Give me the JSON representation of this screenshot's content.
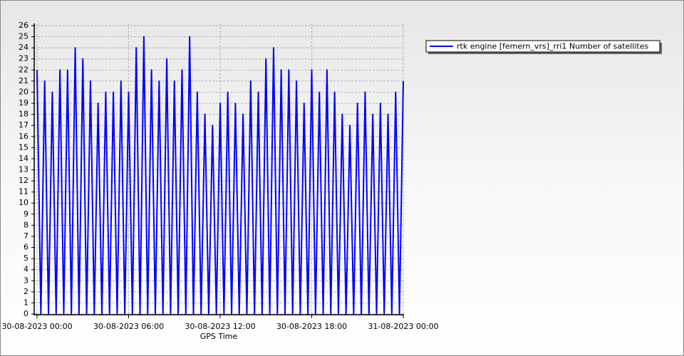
{
  "chart_data": {
    "type": "line",
    "x_label": "GPS Time",
    "x": [
      "30-08-2023 00:00",
      "30-08-2023 00:15",
      "30-08-2023 00:30",
      "30-08-2023 00:45",
      "30-08-2023 01:00",
      "30-08-2023 01:15",
      "30-08-2023 01:30",
      "30-08-2023 01:45",
      "30-08-2023 02:00",
      "30-08-2023 02:15",
      "30-08-2023 02:30",
      "30-08-2023 02:45",
      "30-08-2023 03:00",
      "30-08-2023 03:15",
      "30-08-2023 03:30",
      "30-08-2023 03:45",
      "30-08-2023 04:00",
      "30-08-2023 04:15",
      "30-08-2023 04:30",
      "30-08-2023 04:45",
      "30-08-2023 05:00",
      "30-08-2023 05:15",
      "30-08-2023 05:30",
      "30-08-2023 05:45",
      "30-08-2023 06:00",
      "30-08-2023 06:15",
      "30-08-2023 06:30",
      "30-08-2023 06:45",
      "30-08-2023 07:00",
      "30-08-2023 07:15",
      "30-08-2023 07:30",
      "30-08-2023 07:45",
      "30-08-2023 08:00",
      "30-08-2023 08:15",
      "30-08-2023 08:30",
      "30-08-2023 08:45",
      "30-08-2023 09:00",
      "30-08-2023 09:15",
      "30-08-2023 09:30",
      "30-08-2023 09:45",
      "30-08-2023 10:00",
      "30-08-2023 10:15",
      "30-08-2023 10:30",
      "30-08-2023 10:45",
      "30-08-2023 11:00",
      "30-08-2023 11:15",
      "30-08-2023 11:30",
      "30-08-2023 11:45",
      "30-08-2023 12:00",
      "30-08-2023 12:15",
      "30-08-2023 12:30",
      "30-08-2023 12:45",
      "30-08-2023 13:00",
      "30-08-2023 13:15",
      "30-08-2023 13:30",
      "30-08-2023 13:45",
      "30-08-2023 14:00",
      "30-08-2023 14:15",
      "30-08-2023 14:30",
      "30-08-2023 14:45",
      "30-08-2023 15:00",
      "30-08-2023 15:15",
      "30-08-2023 15:30",
      "30-08-2023 15:45",
      "30-08-2023 16:00",
      "30-08-2023 16:15",
      "30-08-2023 16:30",
      "30-08-2023 16:45",
      "30-08-2023 17:00",
      "30-08-2023 17:15",
      "30-08-2023 17:30",
      "30-08-2023 17:45",
      "30-08-2023 18:00",
      "30-08-2023 18:15",
      "30-08-2023 18:30",
      "30-08-2023 18:45",
      "30-08-2023 19:00",
      "30-08-2023 19:15",
      "30-08-2023 19:30",
      "30-08-2023 19:45",
      "30-08-2023 20:00",
      "30-08-2023 20:15",
      "30-08-2023 20:30",
      "30-08-2023 20:45",
      "30-08-2023 21:00",
      "30-08-2023 21:15",
      "30-08-2023 21:30",
      "30-08-2023 21:45",
      "30-08-2023 22:00",
      "30-08-2023 22:15",
      "30-08-2023 22:30",
      "30-08-2023 22:45",
      "30-08-2023 23:00",
      "30-08-2023 23:15",
      "30-08-2023 23:30",
      "30-08-2023 23:45",
      "31-08-2023 00:00"
    ],
    "series": [
      {
        "name": "rtk engine [femern_vrs]_rri1 Number of satellites",
        "color": "#0000ff",
        "values": [
          22,
          0,
          21,
          0,
          20,
          0,
          22,
          0,
          22,
          0,
          24,
          0,
          23,
          0,
          21,
          0,
          19,
          0,
          20,
          0,
          20,
          0,
          21,
          0,
          20,
          0,
          24,
          0,
          25,
          0,
          22,
          0,
          21,
          0,
          23,
          0,
          21,
          0,
          22,
          0,
          25,
          0,
          20,
          0,
          18,
          0,
          17,
          0,
          19,
          0,
          20,
          0,
          19,
          0,
          18,
          0,
          21,
          0,
          20,
          0,
          23,
          0,
          24,
          0,
          22,
          0,
          22,
          0,
          21,
          0,
          19,
          0,
          22,
          0,
          20,
          0,
          22,
          0,
          20,
          0,
          18,
          0,
          17,
          0,
          19,
          0,
          20,
          0,
          18,
          0,
          19,
          0,
          18,
          0,
          20,
          0,
          21
        ]
      }
    ],
    "xlim": [
      "30-08-2023 00:00",
      "31-08-2023 00:00"
    ],
    "xticks": [
      "30-08-2023 00:00",
      "30-08-2023 06:00",
      "30-08-2023 12:00",
      "30-08-2023 18:00",
      "31-08-2023 00:00"
    ],
    "ylim": [
      0,
      26
    ],
    "yticks": [
      0,
      1,
      2,
      3,
      4,
      5,
      6,
      7,
      8,
      9,
      10,
      11,
      12,
      13,
      14,
      15,
      16,
      17,
      18,
      19,
      20,
      21,
      22,
      23,
      24,
      25,
      26
    ],
    "grid": true
  }
}
